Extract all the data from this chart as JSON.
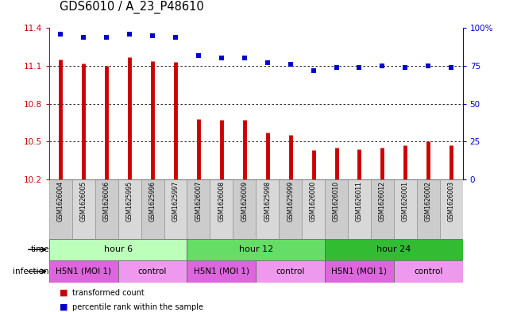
{
  "title": "GDS6010 / A_23_P48610",
  "samples": [
    "GSM1626004",
    "GSM1626005",
    "GSM1626006",
    "GSM1625995",
    "GSM1625996",
    "GSM1625997",
    "GSM1626007",
    "GSM1626008",
    "GSM1626009",
    "GSM1625998",
    "GSM1625999",
    "GSM1626000",
    "GSM1626010",
    "GSM1626011",
    "GSM1626012",
    "GSM1626001",
    "GSM1626002",
    "GSM1626003"
  ],
  "bar_values": [
    11.15,
    11.12,
    11.1,
    11.17,
    11.14,
    11.13,
    10.68,
    10.67,
    10.67,
    10.57,
    10.55,
    10.43,
    10.45,
    10.44,
    10.45,
    10.47,
    10.5,
    10.47
  ],
  "dot_values": [
    96,
    94,
    94,
    96,
    95,
    94,
    82,
    80,
    80,
    77,
    76,
    72,
    74,
    74,
    75,
    74,
    75,
    74
  ],
  "ylim_left": [
    10.2,
    11.4
  ],
  "ylim_right": [
    0,
    100
  ],
  "yticks_left": [
    10.2,
    10.5,
    10.8,
    11.1,
    11.4
  ],
  "yticks_right": [
    0,
    25,
    50,
    75,
    100
  ],
  "bar_color": "#cc0000",
  "dot_color": "#0000cc",
  "time_colors": [
    "#bbffbb",
    "#66dd66",
    "#33bb33"
  ],
  "infect_color_h5n1": "#dd66dd",
  "infect_color_ctrl": "#ee99ee",
  "time_groups": [
    {
      "label": "hour 6",
      "start": 0,
      "end": 6
    },
    {
      "label": "hour 12",
      "start": 6,
      "end": 12
    },
    {
      "label": "hour 24",
      "start": 12,
      "end": 18
    }
  ],
  "infection_groups": [
    {
      "label": "H5N1 (MOI 1)",
      "start": 0,
      "end": 3
    },
    {
      "label": "control",
      "start": 3,
      "end": 6
    },
    {
      "label": "H5N1 (MOI 1)",
      "start": 6,
      "end": 9
    },
    {
      "label": "control",
      "start": 9,
      "end": 12
    },
    {
      "label": "H5N1 (MOI 1)",
      "start": 12,
      "end": 15
    },
    {
      "label": "control",
      "start": 15,
      "end": 18
    }
  ],
  "time_label": "time",
  "infection_label": "infection",
  "legend1": "transformed count",
  "legend2": "percentile rank within the sample",
  "bar_width": 0.12,
  "dot_size": 18,
  "tick_fontsize": 7.5,
  "label_fontsize": 7.5,
  "title_fontsize": 10.5
}
